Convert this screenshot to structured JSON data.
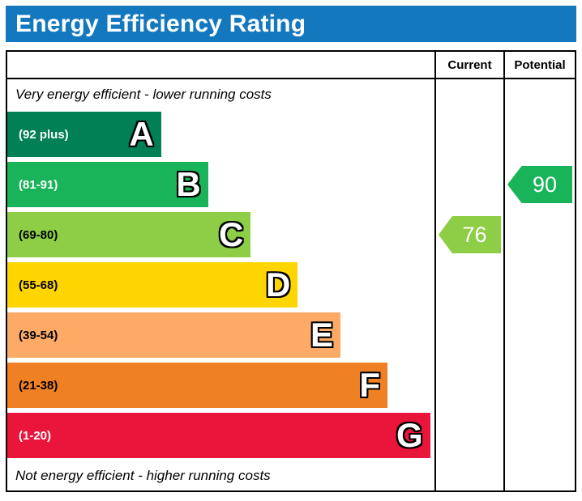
{
  "title": "Energy Efficiency Rating",
  "colors": {
    "title_bg": "#1478be",
    "title_text": "#ffffff",
    "border": "#000000"
  },
  "columns": {
    "current": "Current",
    "potential": "Potential"
  },
  "top_note": "Very energy efficient - lower running costs",
  "bottom_note": "Not energy efficient - higher running costs",
  "bands": [
    {
      "letter": "A",
      "range": "(92 plus)",
      "color": "#008054",
      "range_text_color": "#ffffff",
      "width_pct": 36
    },
    {
      "letter": "B",
      "range": "(81-91)",
      "color": "#19b459",
      "range_text_color": "#ffffff",
      "width_pct": 47
    },
    {
      "letter": "C",
      "range": "(69-80)",
      "color": "#8dce46",
      "range_text_color": "#000000",
      "width_pct": 57
    },
    {
      "letter": "D",
      "range": "(55-68)",
      "color": "#ffd500",
      "range_text_color": "#000000",
      "width_pct": 68
    },
    {
      "letter": "E",
      "range": "(39-54)",
      "color": "#fcaa65",
      "range_text_color": "#000000",
      "width_pct": 78
    },
    {
      "letter": "F",
      "range": "(21-38)",
      "color": "#ef8023",
      "range_text_color": "#000000",
      "width_pct": 89
    },
    {
      "letter": "G",
      "range": "(1-20)",
      "color": "#e9153b",
      "range_text_color": "#ffffff",
      "width_pct": 99
    }
  ],
  "current": {
    "value": "76",
    "band": "C",
    "band_index": 2,
    "color": "#8dce46"
  },
  "potential": {
    "value": "90",
    "band": "B",
    "band_index": 1,
    "color": "#19b459"
  },
  "chart_data": {
    "type": "bar",
    "orientation": "horizontal",
    "title": "Energy Efficiency Rating",
    "categories": [
      "A",
      "B",
      "C",
      "D",
      "E",
      "F",
      "G"
    ],
    "band_ranges": [
      "92 plus",
      "81-91",
      "69-80",
      "55-68",
      "39-54",
      "21-38",
      "1-20"
    ],
    "band_colors": [
      "#008054",
      "#19b459",
      "#8dce46",
      "#ffd500",
      "#fcaa65",
      "#ef8023",
      "#e9153b"
    ],
    "relative_bar_widths_pct": [
      36,
      47,
      57,
      68,
      78,
      89,
      99
    ],
    "markers": [
      {
        "label": "Current",
        "value": 76,
        "band": "C"
      },
      {
        "label": "Potential",
        "value": 90,
        "band": "B"
      }
    ],
    "annotations": [
      "Very energy efficient - lower running costs",
      "Not energy efficient - higher running costs"
    ],
    "legend_position": "none",
    "grid": false
  }
}
